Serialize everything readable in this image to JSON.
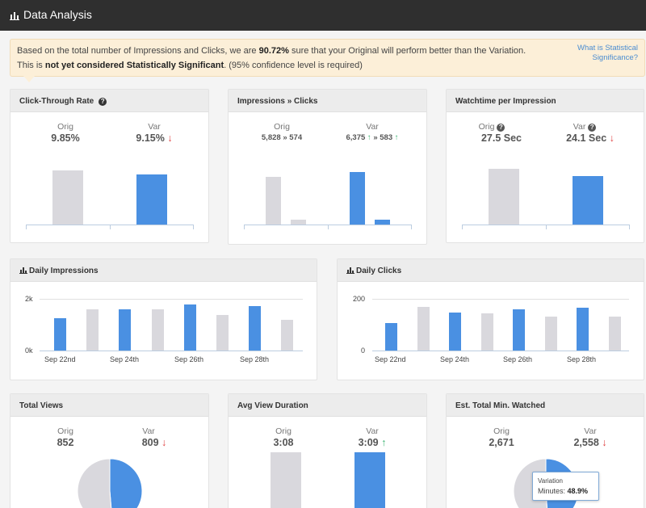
{
  "header": {
    "title": "Data Analysis",
    "icon": "bar-chart-icon"
  },
  "alert": {
    "line1_pre": "Based on the total number of Impressions and Clicks, we are ",
    "line1_bold": "90.72%",
    "line1_post": " sure that your Original will perform better than the Variation.",
    "line2_pre": "This is ",
    "line2_bold": "not yet considered Statistically Significant",
    "line2_post": ". (95% confidence level is required)",
    "help_link": "What is Statistical Significance?"
  },
  "colors": {
    "original": "#d9d8dd",
    "variation": "#4a90e2",
    "up": "#3cb371",
    "down": "#e04545"
  },
  "ctr": {
    "title": "Click-Through Rate",
    "orig_label": "Orig",
    "var_label": "Var",
    "orig_value": "9.85%",
    "var_value": "9.15%",
    "var_trend": "down",
    "chart_data": {
      "type": "bar",
      "categories": [
        "Orig",
        "Var"
      ],
      "values": [
        9.85,
        9.15
      ],
      "ylim": [
        0,
        9.85
      ]
    }
  },
  "impressions_clicks": {
    "title": "Impressions » Clicks",
    "orig_label": "Orig",
    "var_label": "Var",
    "orig_impressions": "5,828",
    "orig_clicks": "574",
    "var_impressions": "6,375",
    "var_clicks": "583",
    "sep": "»",
    "chart_data": {
      "type": "bar",
      "categories": [
        "Orig",
        "Var"
      ],
      "series": [
        {
          "values": [
            5828,
            6375
          ]
        },
        {
          "values": [
            574,
            583
          ]
        }
      ],
      "ylim": [
        0,
        6375
      ]
    }
  },
  "watchtime": {
    "title": "Watchtime per Impression",
    "orig_label": "Orig",
    "var_label": "Var",
    "orig_value": "27.5 Sec",
    "var_value": "24.1 Sec",
    "var_trend": "down",
    "chart_data": {
      "type": "bar",
      "categories": [
        "Orig",
        "Var"
      ],
      "values": [
        27.5,
        24.1
      ],
      "ylim": [
        0,
        27.5
      ]
    }
  },
  "daily_impressions": {
    "title": "Daily Impressions",
    "chart_data": {
      "type": "bar",
      "y_ticks": [
        "2k",
        "0k"
      ],
      "ylim": [
        0,
        2000
      ],
      "x_labels": [
        "Sep 22nd",
        "Sep 24th",
        "Sep 26th",
        "Sep 28th"
      ],
      "categories": [
        "Sep 22",
        "Sep 23",
        "Sep 24",
        "Sep 25",
        "Sep 26",
        "Sep 27",
        "Sep 28",
        "Sep 29"
      ],
      "values": [
        1250,
        1600,
        1580,
        1600,
        1780,
        1390,
        1730,
        1200
      ],
      "variant": [
        "var",
        "orig",
        "var",
        "orig",
        "var",
        "orig",
        "var",
        "orig"
      ]
    }
  },
  "daily_clicks": {
    "title": "Daily Clicks",
    "chart_data": {
      "type": "bar",
      "y_ticks": [
        "200",
        "0"
      ],
      "ylim": [
        0,
        200
      ],
      "x_labels": [
        "Sep 22nd",
        "Sep 24th",
        "Sep 26th",
        "Sep 28th"
      ],
      "categories": [
        "Sep 22",
        "Sep 23",
        "Sep 24",
        "Sep 25",
        "Sep 26",
        "Sep 27",
        "Sep 28",
        "Sep 29"
      ],
      "values": [
        105,
        168,
        146,
        144,
        160,
        130,
        165,
        130
      ],
      "variant": [
        "var",
        "orig",
        "var",
        "orig",
        "var",
        "orig",
        "var",
        "orig"
      ]
    }
  },
  "total_views": {
    "title": "Total Views",
    "orig_label": "Orig",
    "var_label": "Var",
    "orig_value": "852",
    "var_value": "809",
    "var_trend": "down",
    "chart_data": {
      "type": "pie",
      "categories": [
        "Orig",
        "Var"
      ],
      "values": [
        852,
        809
      ]
    }
  },
  "avg_view": {
    "title": "Avg View Duration",
    "orig_label": "Orig",
    "var_label": "Var",
    "orig_value": "3:08",
    "var_value": "3:09",
    "var_trend": "up",
    "chart_data": {
      "type": "bar",
      "categories": [
        "Orig",
        "Var"
      ],
      "values": [
        188,
        189
      ]
    }
  },
  "est_minutes": {
    "title": "Est. Total Min. Watched",
    "orig_label": "Orig",
    "var_label": "Var",
    "orig_value": "2,671",
    "var_value": "2,558",
    "var_trend": "down",
    "tooltip_title": "Variation",
    "tooltip_label": "Minutes:",
    "tooltip_value": "48.9%",
    "chart_data": {
      "type": "pie",
      "categories": [
        "Orig",
        "Var"
      ],
      "values": [
        2671,
        2558
      ]
    }
  }
}
